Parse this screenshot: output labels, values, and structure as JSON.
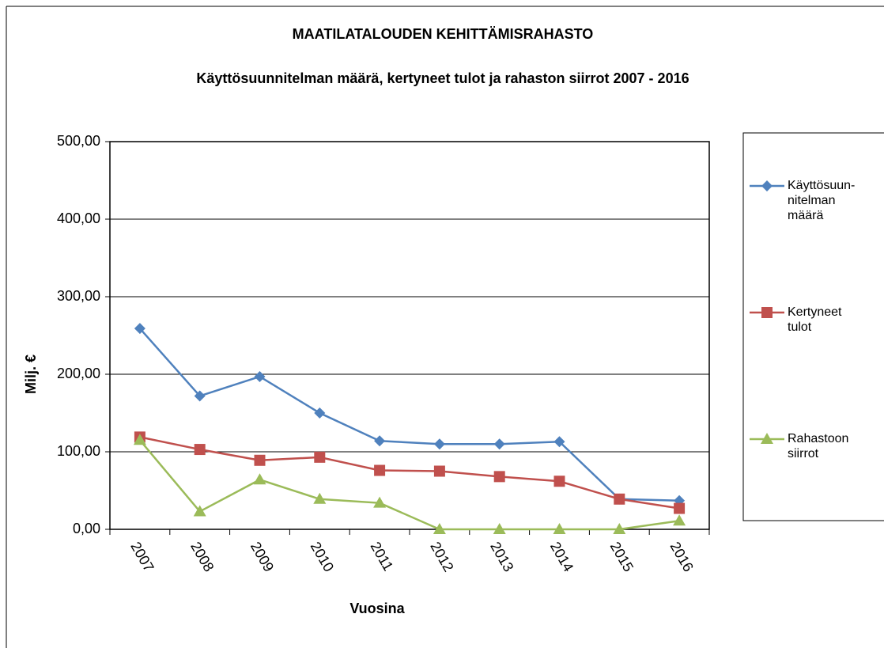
{
  "chart_data": {
    "type": "line",
    "title": "MAATILATALOUDEN KEHITTÄMISRAHASTO",
    "subtitle": "Käyttösuunnitelman määrä, kertyneet tulot ja rahaston siirrot 2007 - 2016",
    "x_label": "Vuosina",
    "y_label": "Milj. €",
    "categories": [
      "2007",
      "2008",
      "2009",
      "2010",
      "2011",
      "2012",
      "2013",
      "2014",
      "2015",
      "2016"
    ],
    "series": [
      {
        "name": "Käyttösuun-\nnitelman\nmäärä",
        "color": "#4f81bd",
        "marker": "diamond",
        "values": [
          259,
          172,
          197,
          150,
          114,
          110,
          110,
          113,
          39,
          37
        ]
      },
      {
        "name": "Kertyneet\ntulot",
        "color": "#c0504d",
        "marker": "square",
        "values": [
          119,
          103,
          89,
          93,
          76,
          75,
          68,
          62,
          39,
          27
        ]
      },
      {
        "name": "Rahastoon\nsiirrot",
        "color": "#9bbb59",
        "marker": "triangle",
        "values": [
          115,
          23,
          64,
          39,
          34,
          0,
          0,
          0,
          0,
          11
        ]
      }
    ],
    "ylim": [
      0,
      500
    ],
    "yticks": [
      {
        "value": 0,
        "label": "0,00"
      },
      {
        "value": 100,
        "label": "100,00"
      },
      {
        "value": 200,
        "label": "200,00"
      },
      {
        "value": 300,
        "label": "300,00"
      },
      {
        "value": 400,
        "label": "400,00"
      },
      {
        "value": 500,
        "label": "500,00"
      }
    ],
    "grid": true,
    "legend": "right"
  }
}
